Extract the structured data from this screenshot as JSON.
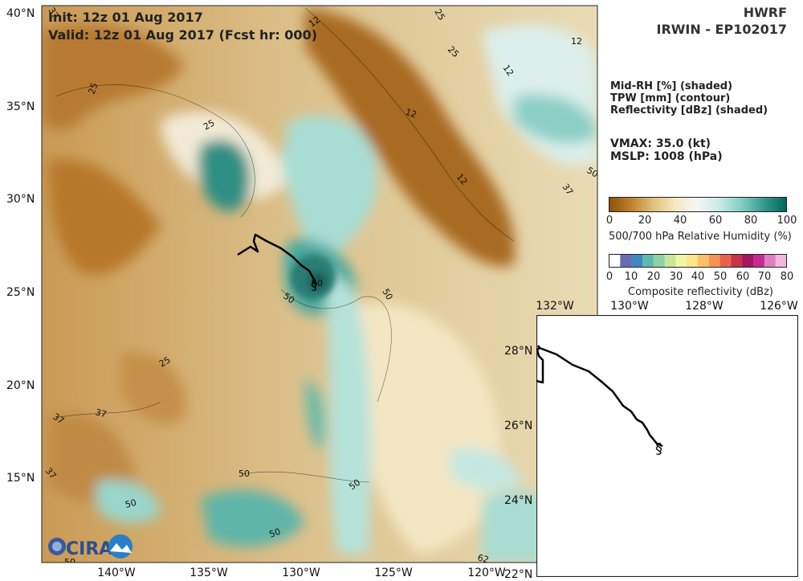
{
  "header": {
    "init": "Init:   12z 01 Aug 2017",
    "valid": "Valid: 12z 01 Aug 2017 (Fcst hr: 000)"
  },
  "title": {
    "model": "HWRF",
    "storm": "IRWIN - EP102017"
  },
  "legend_text": {
    "line1": "Mid-RH [%] (shaded)",
    "line2": "TPW [mm] (contour)",
    "line3": "Reflectivity [dBz] (shaded)"
  },
  "intensity": {
    "vmax": "VMAX:  35.0 (kt)",
    "mslp": "MSLP: 1008 (hPa)"
  },
  "rh_colorbar": {
    "ticks": [
      "0",
      "20",
      "40",
      "60",
      "80",
      "100"
    ],
    "label": "500/700 hPa Relative Humidity (%)",
    "colors": [
      "#8c510a",
      "#bf812d",
      "#dfc27d",
      "#f6e8c3",
      "#f5f5f5",
      "#c7eae5",
      "#80cdc1",
      "#35978f",
      "#01665e"
    ]
  },
  "refl_colorbar": {
    "ticks": [
      "0",
      "10",
      "20",
      "30",
      "40",
      "50",
      "60",
      "70",
      "80"
    ],
    "label": "Composite reflectivity (dBz)",
    "colors": [
      "#ffffff",
      "#6b6bb3",
      "#3f86c2",
      "#5fb8b0",
      "#8fd1a6",
      "#c8e79b",
      "#eff6a6",
      "#fce48d",
      "#fbc06c",
      "#f69454",
      "#e8614b",
      "#c7334b",
      "#a3155e",
      "#c72a8f",
      "#de7fbf",
      "#f0b7dd"
    ]
  },
  "main_map": {
    "lat_labels": [
      "40°N",
      "35°N",
      "30°N",
      "25°N",
      "20°N",
      "15°N"
    ],
    "lon_labels": [
      "140°W",
      "135°W",
      "130°W",
      "125°W",
      "120°W"
    ],
    "contour_labels": [
      "12",
      "12",
      "12",
      "12",
      "12",
      "25",
      "25",
      "25",
      "25",
      "25",
      "37",
      "37",
      "37",
      "37",
      "37",
      "50",
      "50",
      "50",
      "50",
      "50",
      "50",
      "50",
      "50",
      "50",
      "62"
    ]
  },
  "inset_map": {
    "lat_labels": [
      "28°N",
      "26°N",
      "24°N",
      "22°N"
    ],
    "lon_labels": [
      "132°W",
      "130°W",
      "128°W",
      "126°W"
    ]
  },
  "logo": {
    "text": "CIRA"
  }
}
